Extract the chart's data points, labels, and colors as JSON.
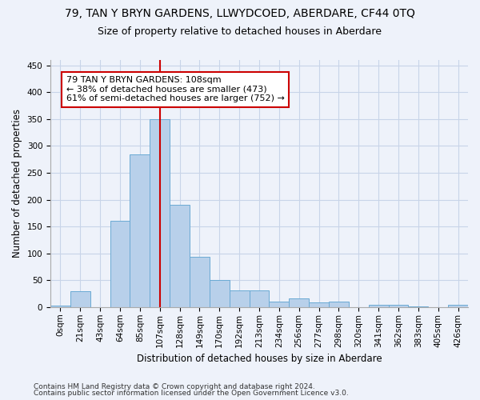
{
  "title": "79, TAN Y BRYN GARDENS, LLWYDCOED, ABERDARE, CF44 0TQ",
  "subtitle": "Size of property relative to detached houses in Aberdare",
  "xlabel": "Distribution of detached houses by size in Aberdare",
  "ylabel": "Number of detached properties",
  "footer_line1": "Contains HM Land Registry data © Crown copyright and database right 2024.",
  "footer_line2": "Contains public sector information licensed under the Open Government Licence v3.0.",
  "bin_labels": [
    "0sqm",
    "21sqm",
    "43sqm",
    "64sqm",
    "85sqm",
    "107sqm",
    "128sqm",
    "149sqm",
    "170sqm",
    "192sqm",
    "213sqm",
    "234sqm",
    "256sqm",
    "277sqm",
    "298sqm",
    "320sqm",
    "341sqm",
    "362sqm",
    "383sqm",
    "405sqm",
    "426sqm"
  ],
  "bar_heights": [
    3,
    30,
    0,
    161,
    285,
    350,
    191,
    93,
    50,
    31,
    31,
    11,
    16,
    9,
    10,
    0,
    5,
    5,
    2,
    0,
    5
  ],
  "bar_color": "#b8d0ea",
  "bar_edge_color": "#6aaad4",
  "property_line_color": "#cc0000",
  "annotation_text": "79 TAN Y BRYN GARDENS: 108sqm\n← 38% of detached houses are smaller (473)\n61% of semi-detached houses are larger (752) →",
  "annotation_box_color": "#ffffff",
  "annotation_box_edge_color": "#cc0000",
  "ylim": [
    0,
    460
  ],
  "yticks": [
    0,
    50,
    100,
    150,
    200,
    250,
    300,
    350,
    400,
    450
  ],
  "background_color": "#eef2fa",
  "grid_color": "#c8d4e8",
  "title_fontsize": 10,
  "subtitle_fontsize": 9,
  "axis_label_fontsize": 8.5,
  "tick_fontsize": 7.5,
  "footer_fontsize": 6.5,
  "annotation_fontsize": 8
}
